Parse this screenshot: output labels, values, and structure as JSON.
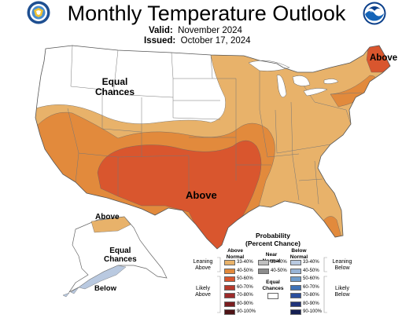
{
  "header": {
    "title": "Monthly Temperature Outlook",
    "valid_label": "Valid:",
    "valid_value": "November 2024",
    "issued_label": "Issued:",
    "issued_value": "October 17, 2024"
  },
  "logos": {
    "left": "department-of-commerce-seal",
    "right": "noaa-logo",
    "right_text": "NOAA"
  },
  "map_labels": {
    "equal_chances_west": "Equal\nChances",
    "above_center": "Above",
    "above_maine": "Above",
    "above_alaska": "Above",
    "equal_chances_alaska": "Equal\nChances",
    "below_alaska": "Below"
  },
  "colors": {
    "above_33_40": "#e8b26a",
    "above_40_50": "#e28a3c",
    "above_50_60": "#d9562e",
    "above_60_70": "#b73a2c",
    "above_70_80": "#9d2a2a",
    "above_80_90": "#7a1d1f",
    "above_90_100": "#4e1416",
    "near_33_40": "#c0c0c0",
    "near_40_50": "#8c8c8c",
    "below_33_40": "#b9c9e0",
    "below_40_50": "#98b4d6",
    "below_50_60": "#6f9ccb",
    "below_60_70": "#3f72b6",
    "below_70_80": "#2b4e9c",
    "below_80_90": "#20337a",
    "below_90_100": "#151f52",
    "equal_chances": "#ffffff",
    "boundary": "#666666"
  },
  "legend": {
    "title": "Probability\n(Percent Chance)",
    "col_above": "Above\nNormal",
    "col_near": "Near\nNormal",
    "col_below": "Below\nNormal",
    "leaning_above": "Leaning\nAbove",
    "likely_above": "Likely\nAbove",
    "leaning_below": "Leaning\nBelow",
    "likely_below": "Likely\nBelow",
    "equal_chances": "Equal\nChances",
    "above_pcts": [
      "33-40%",
      "40-50%",
      "50-60%",
      "60-70%",
      "70-80%",
      "80-90%",
      "90-100%"
    ],
    "near_pcts": [
      "33-40%",
      "40-50%"
    ],
    "below_pcts": [
      "33-40%",
      "40-50%",
      "50-60%",
      "60-70%",
      "70-80%",
      "80-90%",
      "90-100%"
    ]
  }
}
